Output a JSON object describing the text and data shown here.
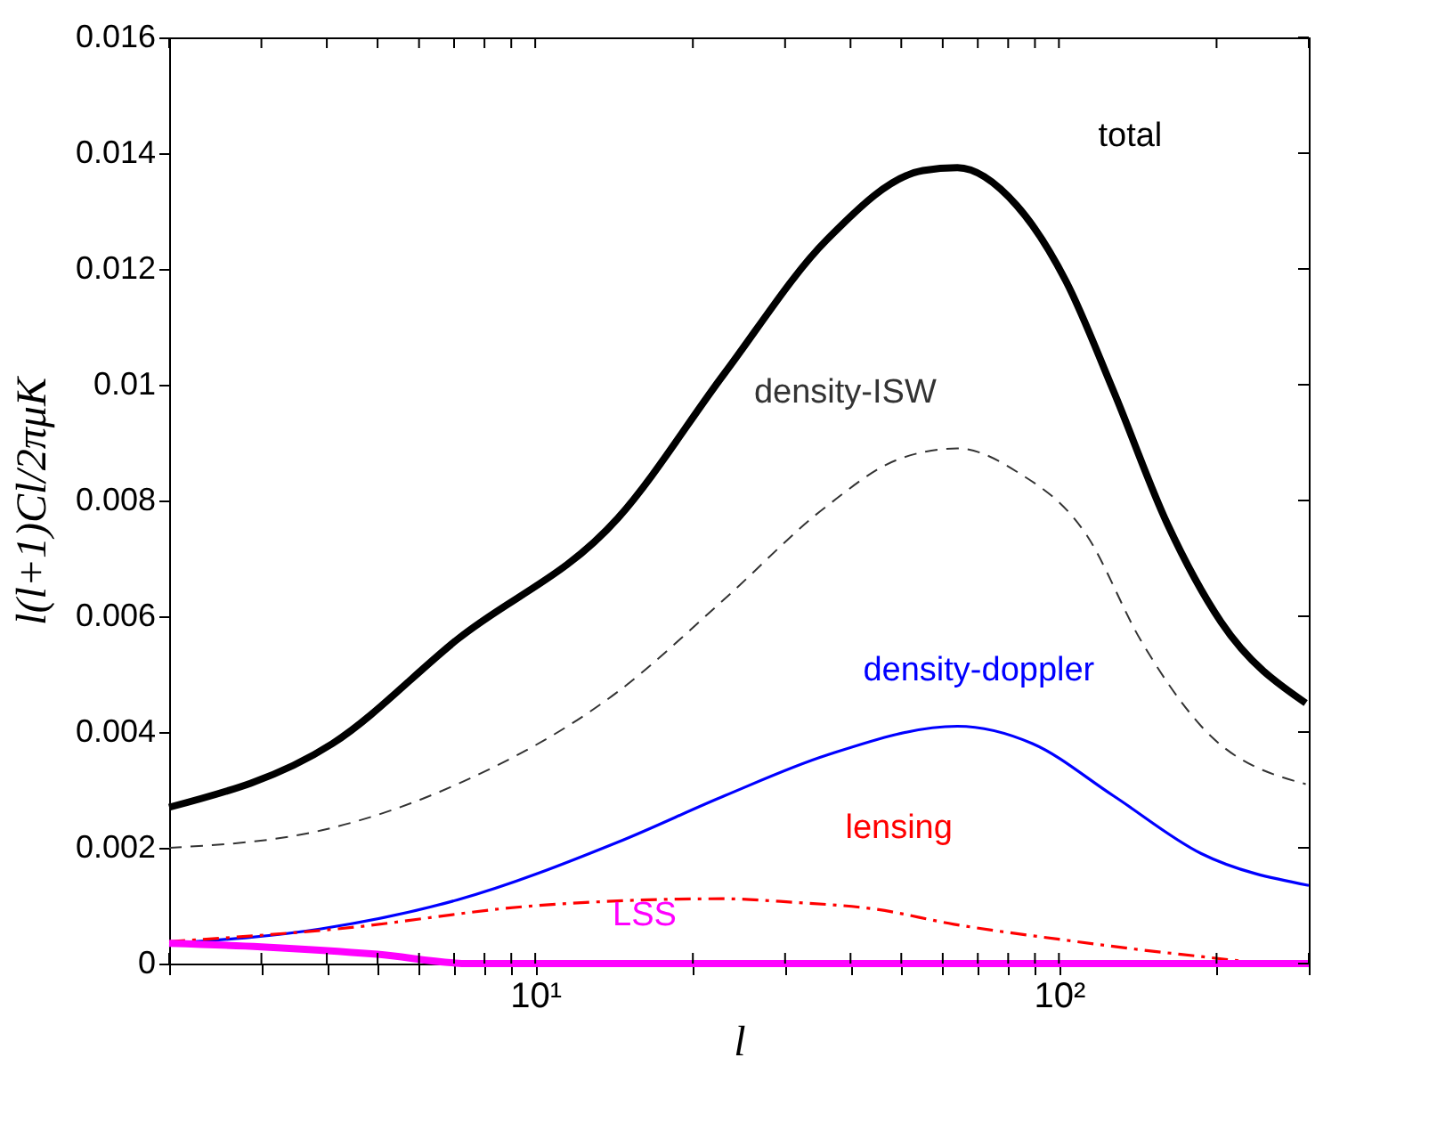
{
  "chart_data": {
    "type": "line",
    "xlabel": "l",
    "ylabel": "l(l+1)Cl/2πμK",
    "log": "x",
    "grid": false,
    "legend": false,
    "marker": "none",
    "xlim": [
      2,
      300
    ],
    "ylim": [
      0,
      0.016
    ],
    "xticks": [
      {
        "value": 2,
        "label": null
      },
      {
        "value": 3,
        "label": null
      },
      {
        "value": 4,
        "label": null
      },
      {
        "value": 5,
        "label": null
      },
      {
        "value": 6,
        "label": null
      },
      {
        "value": 7,
        "label": null
      },
      {
        "value": 8,
        "label": null
      },
      {
        "value": 9,
        "label": null
      },
      {
        "value": 10,
        "label": "10¹"
      },
      {
        "value": 20,
        "label": null
      },
      {
        "value": 30,
        "label": null
      },
      {
        "value": 40,
        "label": null
      },
      {
        "value": 50,
        "label": null
      },
      {
        "value": 60,
        "label": null
      },
      {
        "value": 70,
        "label": null
      },
      {
        "value": 80,
        "label": null
      },
      {
        "value": 90,
        "label": null
      },
      {
        "value": 100,
        "label": "10²"
      },
      {
        "value": 200,
        "label": null
      },
      {
        "value": 300,
        "label": null
      }
    ],
    "yticks": [
      0,
      0.002,
      0.004,
      0.006,
      0.008,
      0.01,
      0.012,
      0.014,
      0.016
    ],
    "series": [
      {
        "name": "total",
        "color": "#000000",
        "line_style": "solid",
        "x": [
          2,
          4.1,
          7.1,
          14.4,
          23,
          36,
          55,
          64,
          83,
          103,
          127,
          161,
          204,
          296
        ],
        "values": [
          0.0027,
          0.0038,
          0.0056,
          0.0077,
          0.0102,
          0.0125,
          0.0137,
          0.01375,
          0.0131,
          0.0118,
          0.0099,
          0.0076,
          0.0059,
          0.0045
        ]
      },
      {
        "name": "density-ISW",
        "color": "#333333",
        "line_style": "dashed",
        "x": [
          2,
          3.9,
          7.1,
          14.4,
          23,
          36,
          49,
          64,
          83,
          113,
          143,
          187,
          296
        ],
        "values": [
          0.002,
          0.0023,
          0.0031,
          0.0047,
          0.0063,
          0.0079,
          0.0087,
          0.0089,
          0.0085,
          0.0074,
          0.0056,
          0.0041,
          0.0031
        ]
      },
      {
        "name": "density-doppler",
        "color": "#0000ff",
        "line_style": "solid",
        "x": [
          2,
          3.9,
          7.1,
          14.4,
          23,
          36,
          64,
          89,
          127,
          187,
          300
        ],
        "values": [
          0.00035,
          0.0006,
          0.0011,
          0.0021,
          0.0029,
          0.0036,
          0.0041,
          0.0038,
          0.0029,
          0.0019,
          0.00135
        ]
      },
      {
        "name": "lensing",
        "color": "#ff0000",
        "line_style": "dashdot",
        "x": [
          2,
          4.2,
          10,
          22.8,
          31,
          44.6,
          63,
          100,
          171,
          274,
          300
        ],
        "values": [
          0.00038,
          0.0006,
          0.001,
          0.00112,
          0.00106,
          0.00094,
          0.00068,
          0.00042,
          0.00016,
          0,
          0
        ]
      },
      {
        "name": "LSS",
        "color": "#ff00ff",
        "line_style": "solid",
        "x": [
          2,
          3,
          5,
          7.5,
          20,
          100,
          300
        ],
        "values": [
          0.00035,
          0.00029,
          0.00016,
          0,
          0,
          0,
          0
        ]
      }
    ]
  }
}
